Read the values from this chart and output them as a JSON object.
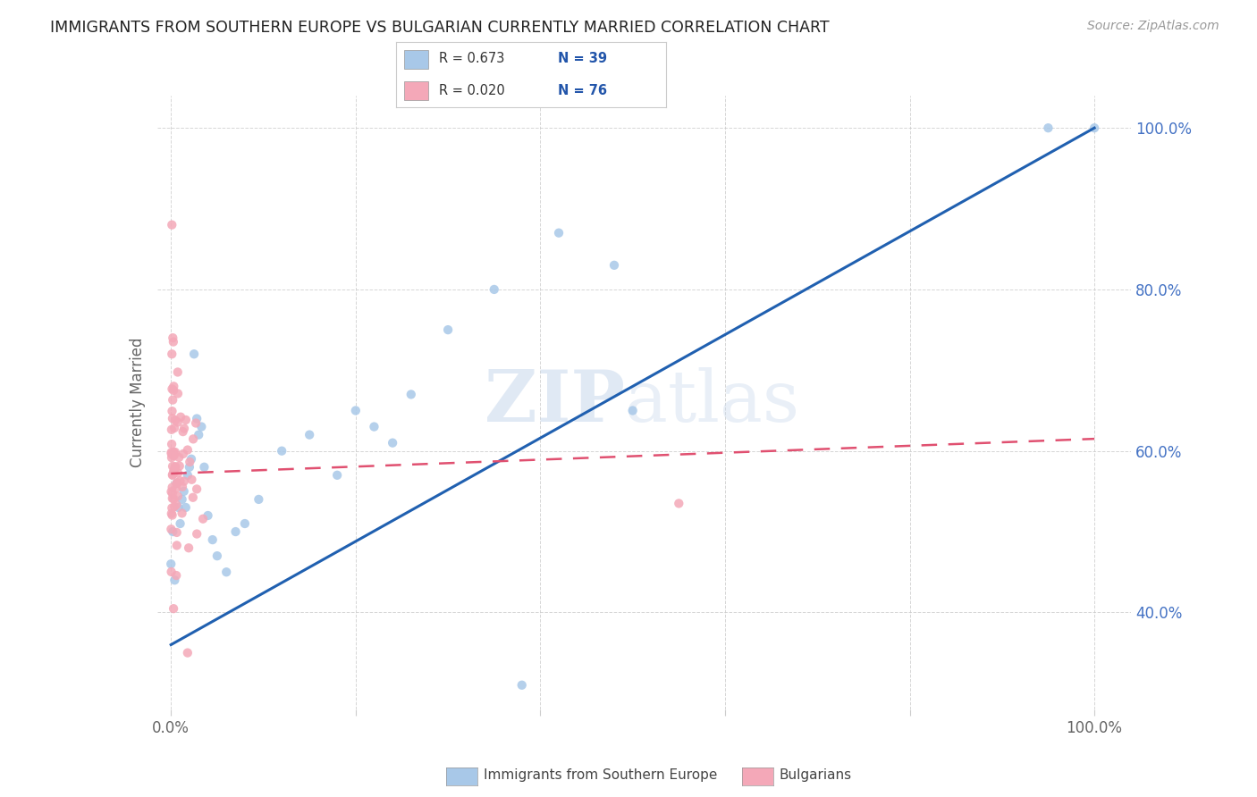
{
  "title": "IMMIGRANTS FROM SOUTHERN EUROPE VS BULGARIAN CURRENTLY MARRIED CORRELATION CHART",
  "source": "Source: ZipAtlas.com",
  "ylabel": "Currently Married",
  "right_yticks": [
    "100.0%",
    "80.0%",
    "60.0%",
    "40.0%"
  ],
  "right_ytick_vals": [
    1.0,
    0.8,
    0.6,
    0.4
  ],
  "blue_color": "#a8c8e8",
  "pink_color": "#f4a8b8",
  "line_blue": "#2060b0",
  "line_pink": "#e05070",
  "watermark_zip": "ZIP",
  "watermark_atlas": "atlas",
  "blue_line_x": [
    0.0,
    1.0
  ],
  "blue_line_y": [
    0.36,
    1.0
  ],
  "pink_line_x": [
    0.0,
    1.0
  ],
  "pink_line_y": [
    0.572,
    0.615
  ],
  "ylim_low": 0.28,
  "ylim_high": 1.04,
  "xlim_low": -0.015,
  "xlim_high": 1.04
}
